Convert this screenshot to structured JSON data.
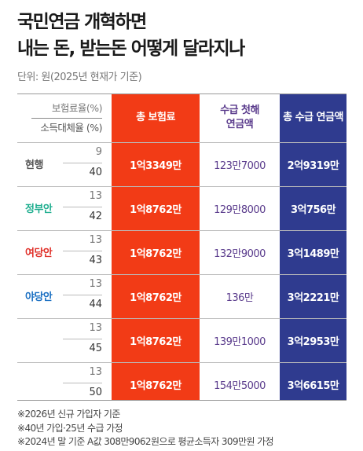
{
  "title": {
    "line1": "국민연금 개혁하면",
    "line2": "내는 돈, 받는돈 어떻게 달라지나"
  },
  "unit": "단위: 원(2025년 현재가 기준)",
  "header": {
    "rate_label": "보험료율(%)",
    "replacement_label": "소득대체율 (%)",
    "col1": "총 보험료",
    "col2_line1": "수급 첫해",
    "col2_line2": "연금액",
    "col3": "총 수급 연금액"
  },
  "rows": [
    {
      "label": "현행",
      "label_color": "#555555",
      "rate": "9",
      "replacement": "40",
      "total_premium": "1억3349만",
      "first_year": "123만7000",
      "total_pension": "2억9319만"
    },
    {
      "label": "정부안",
      "label_color": "#1fae8f",
      "rate": "13",
      "replacement": "42",
      "total_premium": "1억8762만",
      "first_year": "129만8000",
      "total_pension": "3억756만"
    },
    {
      "label": "여당안",
      "label_color": "#e0312a",
      "rate": "13",
      "replacement": "43",
      "total_premium": "1억8762만",
      "first_year": "132만9000",
      "total_pension": "3억1489만"
    },
    {
      "label": "야당안",
      "label_color": "#1a6fc2",
      "rate": "13",
      "replacement": "44",
      "total_premium": "1억8762만",
      "first_year": "136만",
      "total_pension": "3억2221만"
    },
    {
      "label": "",
      "label_color": "#555555",
      "rate": "13",
      "replacement": "45",
      "total_premium": "1억8762만",
      "first_year": "139만1000",
      "total_pension": "3억2953만"
    },
    {
      "label": "",
      "label_color": "#555555",
      "rate": "13",
      "replacement": "50",
      "total_premium": "1억8762만",
      "first_year": "154만5000",
      "total_pension": "3억6615만"
    }
  ],
  "notes": [
    "※2026년 신규 가입자 기준",
    "※40년 가입·25년 수급 가정",
    "※2024년 말 기준 A값 308만9062원으로 평균소득자 309만원 가정"
  ],
  "colors": {
    "premium_column": "#f23b16",
    "pension_column": "#2f3b8f",
    "first_year_text": "#5a3b8c"
  }
}
